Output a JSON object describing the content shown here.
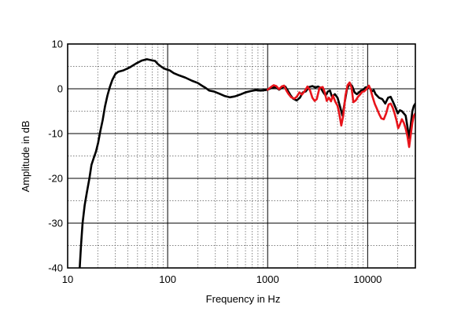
{
  "chart_data": {
    "type": "line",
    "title": "",
    "xlabel": "Frequency in Hz",
    "ylabel": "Amplitude in dB",
    "xscale": "log",
    "xlim": [
      10,
      30000
    ],
    "ylim": [
      -40,
      10
    ],
    "x_ticks": [
      10,
      100,
      1000,
      10000
    ],
    "x_tick_labels": [
      "10",
      "100",
      "1000",
      "10000"
    ],
    "y_ticks": [
      10,
      0,
      -10,
      -20,
      -30,
      -40
    ],
    "y_tick_labels": [
      "10",
      "0",
      "-10",
      "-20",
      "-30",
      "-40"
    ],
    "y_minor_step": 5,
    "grid": true,
    "legend": "none",
    "colors": {
      "black_series": "#000000",
      "red_series": "#e8141b",
      "grid_major": "#000000",
      "grid_minor": "#555555"
    },
    "series": [
      {
        "color": "#000000",
        "points": [
          [
            13.2,
            -40
          ],
          [
            13.6,
            -35
          ],
          [
            14.1,
            -30
          ],
          [
            14.8,
            -26
          ],
          [
            15.6,
            -23
          ],
          [
            16.5,
            -20
          ],
          [
            17.3,
            -17
          ],
          [
            18.2,
            -15.5
          ],
          [
            19.2,
            -14
          ],
          [
            20.2,
            -12
          ],
          [
            21.2,
            -9.5
          ],
          [
            22.4,
            -7
          ],
          [
            23.6,
            -4
          ],
          [
            25,
            -1.5
          ],
          [
            26.5,
            0.5
          ],
          [
            28,
            2
          ],
          [
            30,
            3.3
          ],
          [
            32,
            3.8
          ],
          [
            36,
            4.1
          ],
          [
            42,
            4.8
          ],
          [
            48,
            5.6
          ],
          [
            55,
            6.3
          ],
          [
            62,
            6.6
          ],
          [
            68,
            6.4
          ],
          [
            75,
            6.2
          ],
          [
            80,
            5.5
          ],
          [
            88,
            4.8
          ],
          [
            95,
            4.4
          ],
          [
            105,
            4.1
          ],
          [
            115,
            3.5
          ],
          [
            130,
            3.0
          ],
          [
            150,
            2.5
          ],
          [
            175,
            1.8
          ],
          [
            200,
            1.3
          ],
          [
            220,
            0.7
          ],
          [
            240,
            0.2
          ],
          [
            260,
            -0.4
          ],
          [
            290,
            -0.6
          ],
          [
            330,
            -1.1
          ],
          [
            370,
            -1.6
          ],
          [
            420,
            -1.9
          ],
          [
            470,
            -1.7
          ],
          [
            530,
            -1.3
          ],
          [
            600,
            -0.8
          ],
          [
            680,
            -0.5
          ],
          [
            760,
            -0.3
          ],
          [
            850,
            -0.4
          ],
          [
            950,
            -0.3
          ],
          [
            1000,
            -0.2
          ],
          [
            1100,
            0.2
          ],
          [
            1200,
            0.4
          ],
          [
            1300,
            -0.2
          ],
          [
            1400,
            0.3
          ],
          [
            1500,
            0.5
          ],
          [
            1600,
            -0.5
          ],
          [
            1700,
            -1.5
          ],
          [
            1800,
            -2.2
          ],
          [
            1950,
            -2.6
          ],
          [
            2100,
            -2.0
          ],
          [
            2250,
            -0.8
          ],
          [
            2400,
            -0.6
          ],
          [
            2600,
            0.4
          ],
          [
            2800,
            0.6
          ],
          [
            3000,
            0.3
          ],
          [
            3200,
            0.5
          ],
          [
            3400,
            0.2
          ],
          [
            3600,
            -0.8
          ],
          [
            3800,
            -1.5
          ],
          [
            4000,
            -0.6
          ],
          [
            4200,
            -0.4
          ],
          [
            4400,
            -1.8
          ],
          [
            4700,
            -1.2
          ],
          [
            5000,
            -2.0
          ],
          [
            5300,
            -4.0
          ],
          [
            5600,
            -6.0
          ],
          [
            5900,
            -3.0
          ],
          [
            6200,
            -0.2
          ],
          [
            6600,
            1.2
          ],
          [
            7000,
            0.6
          ],
          [
            7400,
            -0.8
          ],
          [
            7800,
            -1.2
          ],
          [
            8200,
            -0.8
          ],
          [
            8600,
            -0.4
          ],
          [
            9000,
            -0.3
          ],
          [
            9500,
            0.3
          ],
          [
            10000,
            0.4
          ],
          [
            10500,
            0.2
          ],
          [
            11000,
            -0.6
          ],
          [
            11500,
            -0.3
          ],
          [
            12000,
            -1.2
          ],
          [
            13000,
            -2.0
          ],
          [
            14000,
            -2.3
          ],
          [
            15000,
            -3.3
          ],
          [
            16000,
            -2.0
          ],
          [
            17000,
            -1.8
          ],
          [
            18000,
            -3.0
          ],
          [
            19000,
            -4.2
          ],
          [
            20000,
            -5.5
          ],
          [
            21000,
            -4.8
          ],
          [
            22000,
            -5.0
          ],
          [
            23000,
            -5.5
          ],
          [
            24000,
            -6.0
          ],
          [
            25000,
            -8.5
          ],
          [
            26000,
            -11.0
          ],
          [
            27000,
            -8.0
          ],
          [
            28000,
            -5.0
          ],
          [
            29000,
            -3.8
          ],
          [
            30000,
            -3.3
          ]
        ]
      },
      {
        "color": "#e8141b",
        "points": [
          [
            1000,
            -0.2
          ],
          [
            1080,
            0.4
          ],
          [
            1150,
            0.8
          ],
          [
            1220,
            0.6
          ],
          [
            1300,
            -0.1
          ],
          [
            1380,
            0.5
          ],
          [
            1460,
            0.7
          ],
          [
            1540,
            -0.4
          ],
          [
            1620,
            -1.2
          ],
          [
            1720,
            -1.9
          ],
          [
            1850,
            -2.2
          ],
          [
            1950,
            -1.8
          ],
          [
            2080,
            -0.8
          ],
          [
            2200,
            -1.3
          ],
          [
            2350,
            -0.5
          ],
          [
            2500,
            0.5
          ],
          [
            2650,
            -0.3
          ],
          [
            2800,
            -2.0
          ],
          [
            2950,
            -2.7
          ],
          [
            3100,
            -2.3
          ],
          [
            3300,
            0.2
          ],
          [
            3550,
            0.4
          ],
          [
            3700,
            -0.6
          ],
          [
            3900,
            -2.7
          ],
          [
            4100,
            -2.0
          ],
          [
            4300,
            -2.8
          ],
          [
            4500,
            -1.5
          ],
          [
            4750,
            -2.9
          ],
          [
            5000,
            -3.8
          ],
          [
            5200,
            -5.5
          ],
          [
            5450,
            -8.2
          ],
          [
            5700,
            -6.0
          ],
          [
            6000,
            -1.5
          ],
          [
            6300,
            0.8
          ],
          [
            6600,
            1.4
          ],
          [
            6900,
            0.3
          ],
          [
            7200,
            -3.0
          ],
          [
            7600,
            -2.6
          ],
          [
            8000,
            -1.8
          ],
          [
            8400,
            -1.3
          ],
          [
            8800,
            -0.7
          ],
          [
            9200,
            -0.6
          ],
          [
            9600,
            -0.2
          ],
          [
            10000,
            0.3
          ],
          [
            10300,
            0.7
          ],
          [
            10700,
            -0.2
          ],
          [
            11200,
            -1.8
          ],
          [
            11800,
            -3.4
          ],
          [
            12400,
            -4.5
          ],
          [
            13000,
            -5.6
          ],
          [
            13700,
            -6.6
          ],
          [
            14500,
            -6.8
          ],
          [
            15300,
            -5.5
          ],
          [
            16200,
            -3.5
          ],
          [
            17000,
            -3.3
          ],
          [
            17800,
            -4.2
          ],
          [
            18600,
            -5.5
          ],
          [
            19400,
            -7.0
          ],
          [
            20200,
            -8.8
          ],
          [
            21000,
            -8.0
          ],
          [
            22000,
            -6.8
          ],
          [
            23000,
            -7.6
          ],
          [
            24000,
            -8.9
          ],
          [
            25000,
            -10.6
          ],
          [
            26000,
            -13.0
          ],
          [
            27000,
            -10.2
          ],
          [
            28000,
            -7.6
          ],
          [
            29000,
            -6.0
          ],
          [
            30000,
            -5.5
          ]
        ]
      }
    ]
  }
}
